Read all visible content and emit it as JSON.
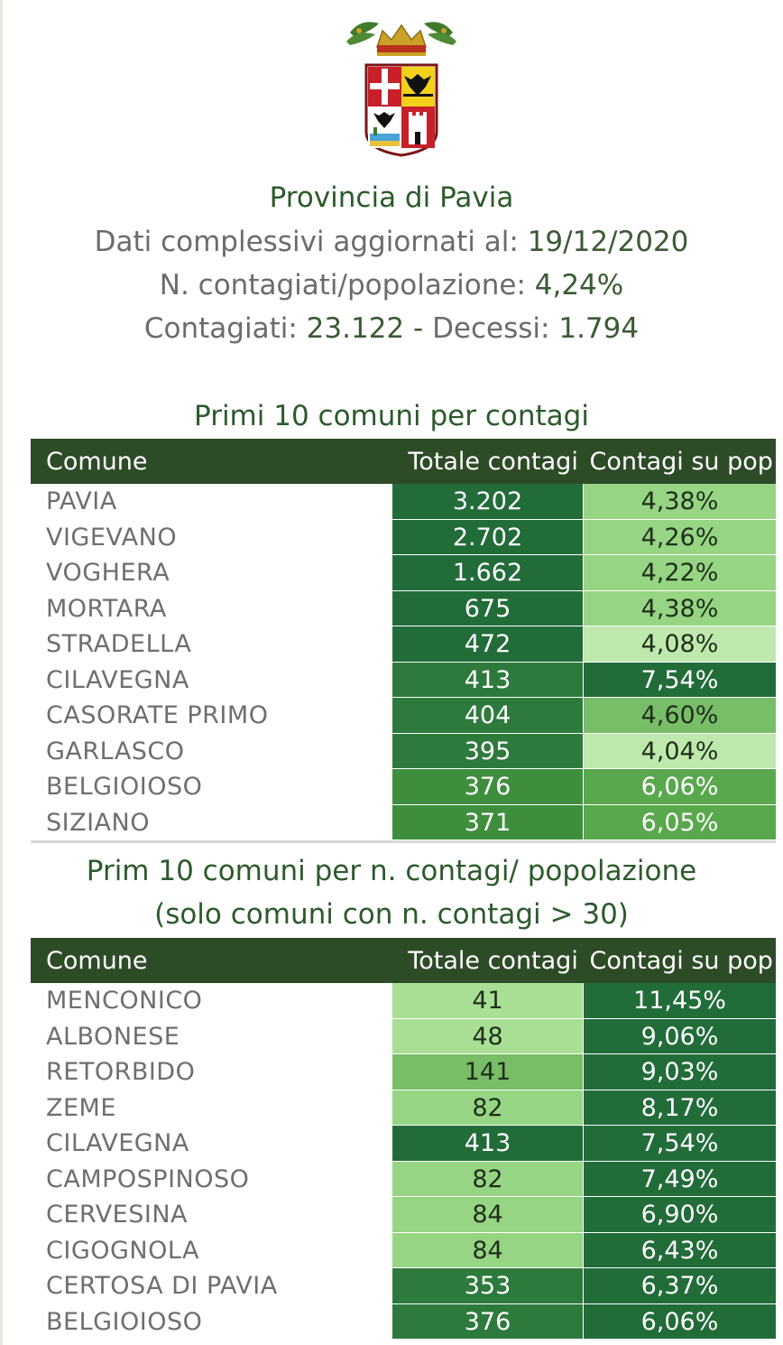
{
  "header": {
    "title": "Provincia di Pavia",
    "updated_label": "Dati complessivi aggiornati al:",
    "updated_date": "19/12/2020",
    "ratio_label": "N. contagiati/popolazione:",
    "ratio_value": "4,24%",
    "cases_label": "Contagiati:",
    "cases_value": "23.122",
    "separator": "-",
    "deaths_label": "Decessi:",
    "deaths_value": "1.794"
  },
  "table1": {
    "title": "Primi 10 comuni per contagi",
    "columns": [
      "Comune",
      "Totale contagi",
      "Contagi su pop"
    ],
    "rows": [
      {
        "comune": "PAVIA",
        "totale": "3.202",
        "perc": "4,38%",
        "shade_totale": "g1",
        "shade_perc": "g6"
      },
      {
        "comune": "VIGEVANO",
        "totale": "2.702",
        "perc": "4,26%",
        "shade_totale": "g1",
        "shade_perc": "g6"
      },
      {
        "comune": "VOGHERA",
        "totale": "1.662",
        "perc": "4,22%",
        "shade_totale": "g1",
        "shade_perc": "g6"
      },
      {
        "comune": "MORTARA",
        "totale": "675",
        "perc": "4,38%",
        "shade_totale": "g1",
        "shade_perc": "g6"
      },
      {
        "comune": "STRADELLA",
        "totale": "472",
        "perc": "4,08%",
        "shade_totale": "g1",
        "shade_perc": "g8"
      },
      {
        "comune": "CILAVEGNA",
        "totale": "413",
        "perc": "7,54%",
        "shade_totale": "g2",
        "shade_perc": "g1"
      },
      {
        "comune": "CASORATE PRIMO",
        "totale": "404",
        "perc": "4,60%",
        "shade_totale": "g2",
        "shade_perc": "g5"
      },
      {
        "comune": "GARLASCO",
        "totale": "395",
        "perc": "4,04%",
        "shade_totale": "g2",
        "shade_perc": "g8"
      },
      {
        "comune": "BELGIOIOSO",
        "totale": "376",
        "perc": "6,06%",
        "shade_totale": "g3",
        "shade_perc": "g4"
      },
      {
        "comune": "SIZIANO",
        "totale": "371",
        "perc": "6,05%",
        "shade_totale": "g3",
        "shade_perc": "g4"
      }
    ]
  },
  "table2": {
    "title_line1": "Prim 10 comuni per n. contagi/ popolazione",
    "title_line2": "(solo comuni con n. contagi > 30)",
    "columns": [
      "Comune",
      "Totale contagi",
      "Contagi su pop"
    ],
    "rows": [
      {
        "comune": "MENCONICO",
        "totale": "41",
        "perc": "11,45%",
        "shade_totale": "g7",
        "shade_perc": "g1"
      },
      {
        "comune": "ALBONESE",
        "totale": "48",
        "perc": "9,06%",
        "shade_totale": "g7",
        "shade_perc": "g1"
      },
      {
        "comune": "RETORBIDO",
        "totale": "141",
        "perc": "9,03%",
        "shade_totale": "g5",
        "shade_perc": "g1"
      },
      {
        "comune": "ZEME",
        "totale": "82",
        "perc": "8,17%",
        "shade_totale": "g6",
        "shade_perc": "g1"
      },
      {
        "comune": "CILAVEGNA",
        "totale": "413",
        "perc": "7,54%",
        "shade_totale": "g1",
        "shade_perc": "g1"
      },
      {
        "comune": "CAMPOSPINOSO",
        "totale": "82",
        "perc": "7,49%",
        "shade_totale": "g6",
        "shade_perc": "g1"
      },
      {
        "comune": "CERVESINA",
        "totale": "84",
        "perc": "6,90%",
        "shade_totale": "g6",
        "shade_perc": "g1"
      },
      {
        "comune": "CIGOGNOLA",
        "totale": "84",
        "perc": "6,43%",
        "shade_totale": "g6",
        "shade_perc": "g1"
      },
      {
        "comune": "CERTOSA DI PAVIA",
        "totale": "353",
        "perc": "6,37%",
        "shade_totale": "g2",
        "shade_perc": "g1"
      },
      {
        "comune": "BELGIOIOSO",
        "totale": "376",
        "perc": "6,06%",
        "shade_totale": "g2",
        "shade_perc": "g1"
      }
    ]
  },
  "colors": {
    "header_bg": "#2e4b28",
    "title_green": "#2c5a2c",
    "dark_green": "#226c3a",
    "light_green": "#bfe8ad"
  },
  "icons": [
    "province-coat-of-arms-icon"
  ]
}
